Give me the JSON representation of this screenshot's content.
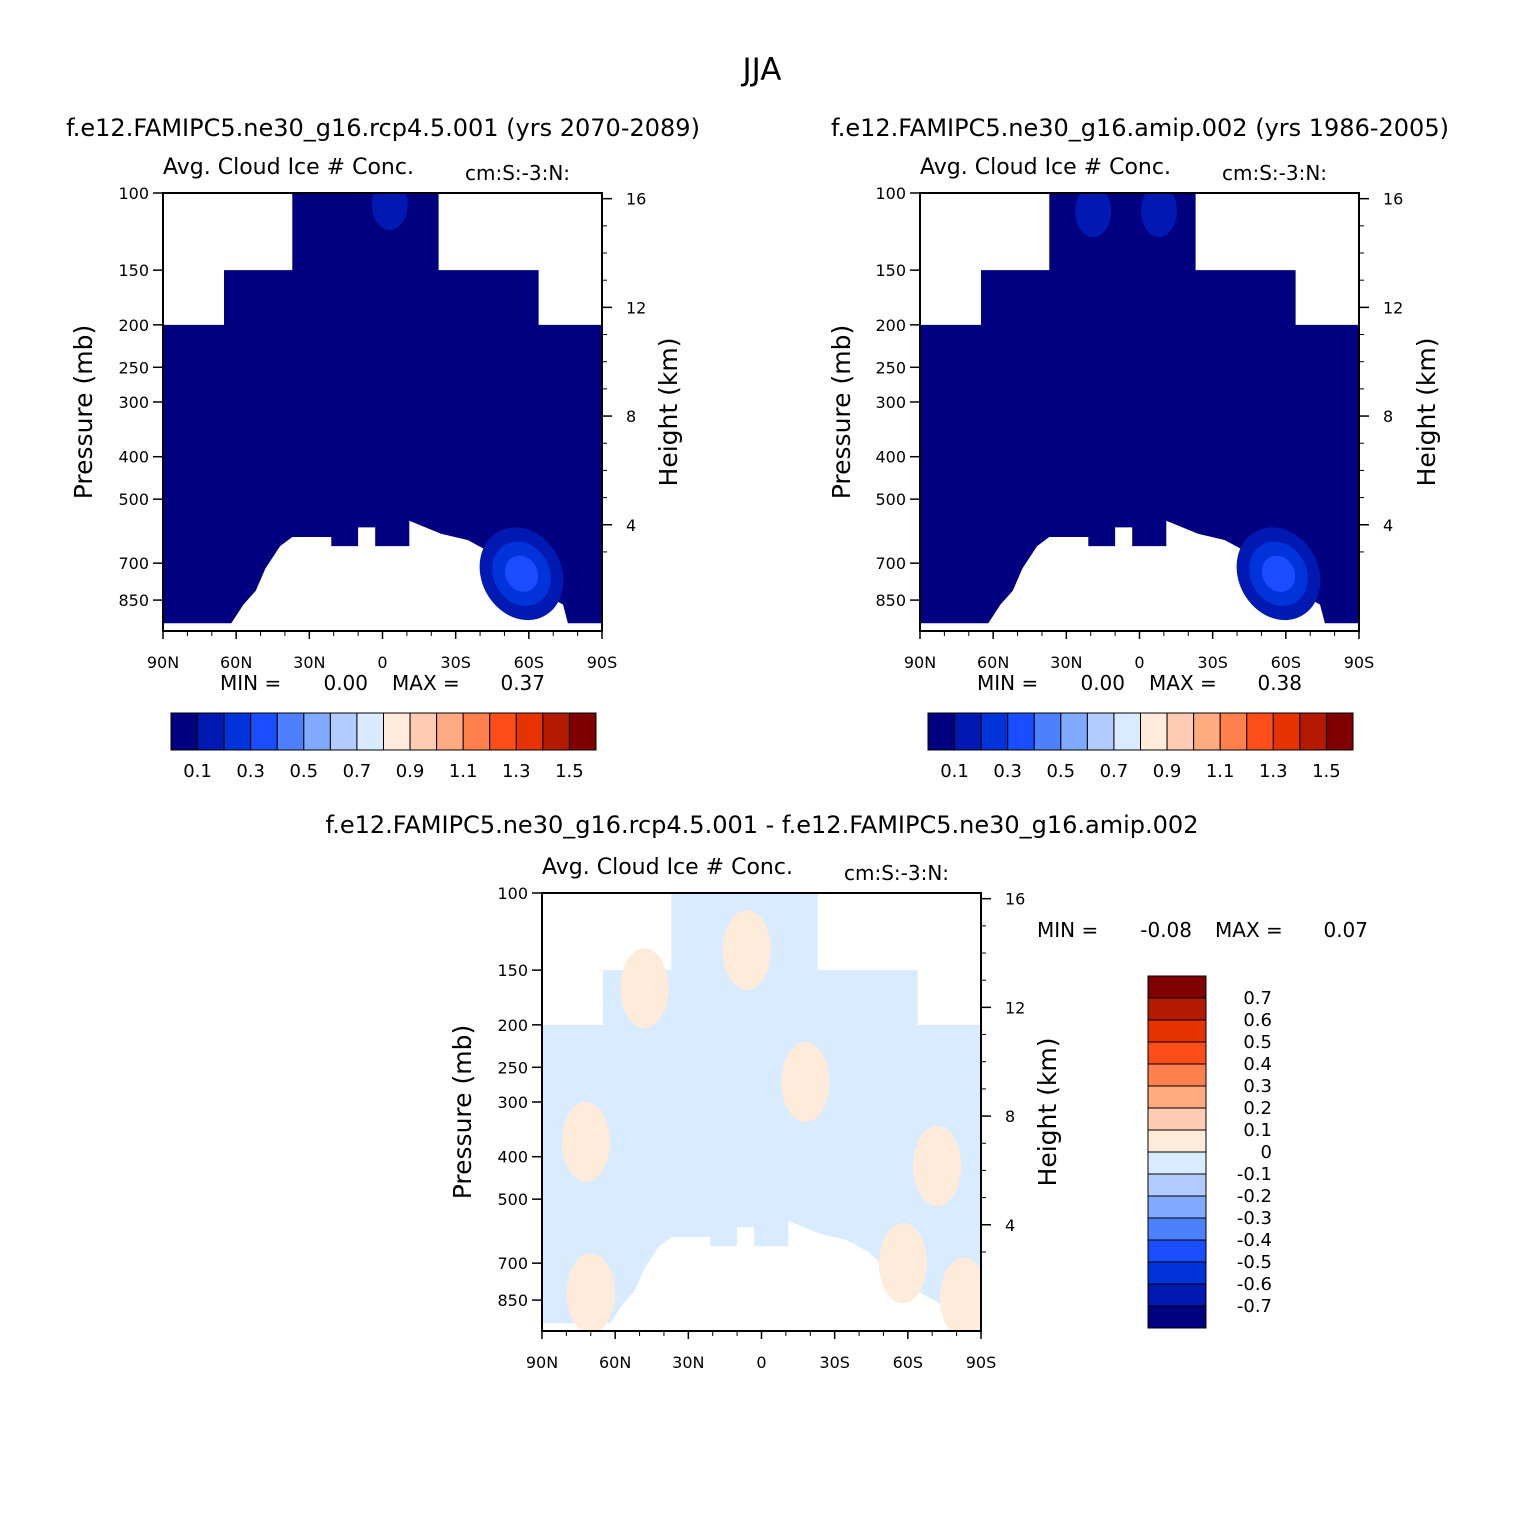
{
  "title": "JJA",
  "chart_data": [
    {
      "type": "heatmap",
      "panel": "top-left",
      "case_title": "f.e12.FAMIPC5.ne30_g16.rcp4.5.001 (yrs 2070-2089)",
      "title": "Avg. Cloud Ice # Conc.",
      "units": "cm:S:-3:N:",
      "ylabel": "Pressure (mb)",
      "y2label": "Height (km)",
      "xticks": [
        "90N",
        "60N",
        "30N",
        "0",
        "30S",
        "60S",
        "90S"
      ],
      "yticks": [
        100,
        150,
        200,
        250,
        300,
        400,
        500,
        700,
        850
      ],
      "y2ticks": [
        16,
        12,
        8,
        4
      ],
      "ylim": [
        100,
        1000
      ],
      "min_label": "MIN =",
      "min_value": "0.00",
      "max_label": "MAX =",
      "max_value": "0.37",
      "colorbar_labels": [
        "0.1",
        "0.3",
        "0.5",
        "0.7",
        "0.9",
        "1.1",
        "1.3",
        "1.5"
      ],
      "colorbar_levels": [
        0,
        0.1,
        0.2,
        0.3,
        0.4,
        0.5,
        0.6,
        0.7,
        0.8,
        0.9,
        1.0,
        1.1,
        1.2,
        1.3,
        1.4,
        1.5
      ],
      "field_base_value": 0.05,
      "maxima": [
        {
          "lat": -57,
          "p": 740,
          "value": 0.37
        },
        {
          "lat": -3,
          "p": 106,
          "value": 0.17
        }
      ]
    },
    {
      "type": "heatmap",
      "panel": "top-right",
      "case_title": "f.e12.FAMIPC5.ne30_g16.amip.002 (yrs 1986-2005)",
      "title": "Avg. Cloud Ice # Conc.",
      "units": "cm:S:-3:N:",
      "ylabel": "Pressure (mb)",
      "y2label": "Height (km)",
      "xticks": [
        "90N",
        "60N",
        "30N",
        "0",
        "30S",
        "60S",
        "90S"
      ],
      "yticks": [
        100,
        150,
        200,
        250,
        300,
        400,
        500,
        700,
        850
      ],
      "y2ticks": [
        16,
        12,
        8,
        4
      ],
      "ylim": [
        100,
        1000
      ],
      "min_label": "MIN =",
      "min_value": "0.00",
      "max_label": "MAX =",
      "max_value": "0.38",
      "colorbar_labels": [
        "0.1",
        "0.3",
        "0.5",
        "0.7",
        "0.9",
        "1.1",
        "1.3",
        "1.5"
      ],
      "colorbar_levels": [
        0,
        0.1,
        0.2,
        0.3,
        0.4,
        0.5,
        0.6,
        0.7,
        0.8,
        0.9,
        1.0,
        1.1,
        1.2,
        1.3,
        1.4,
        1.5
      ],
      "field_base_value": 0.05,
      "maxima": [
        {
          "lat": -57,
          "p": 740,
          "value": 0.38
        },
        {
          "lat": 19,
          "p": 110,
          "value": 0.15
        },
        {
          "lat": -8,
          "p": 110,
          "value": 0.14
        }
      ]
    },
    {
      "type": "heatmap",
      "panel": "bottom-difference",
      "case_title": "f.e12.FAMIPC5.ne30_g16.rcp4.5.001 - f.e12.FAMIPC5.ne30_g16.amip.002",
      "title": "Avg. Cloud Ice # Conc.",
      "units": "cm:S:-3:N:",
      "ylabel": "Pressure (mb)",
      "y2label": "Height (km)",
      "xticks": [
        "90N",
        "60N",
        "30N",
        "0",
        "30S",
        "60S",
        "90S"
      ],
      "yticks": [
        100,
        150,
        200,
        250,
        300,
        400,
        500,
        700,
        850
      ],
      "y2ticks": [
        16,
        12,
        8,
        4
      ],
      "ylim": [
        100,
        1000
      ],
      "min_label": "MIN =",
      "min_value": "-0.08",
      "max_label": "MAX =",
      "max_value": "0.07",
      "colorbar_labels": [
        "0.7",
        "0.6",
        "0.5",
        "0.4",
        "0.3",
        "0.2",
        "0.1",
        "0",
        "-0.1",
        "-0.2",
        "-0.3",
        "-0.4",
        "-0.5",
        "-0.6",
        "-0.7"
      ],
      "field_base_value": -0.03,
      "positive_regions": [
        {
          "lat": 72,
          "p": 370,
          "value": 0.03
        },
        {
          "lat": 70,
          "p": 820,
          "value": 0.03
        },
        {
          "lat": 48,
          "p": 165,
          "value": 0.02
        },
        {
          "lat": 6,
          "p": 135,
          "value": 0.02
        },
        {
          "lat": -18,
          "p": 270,
          "value": 0.02
        },
        {
          "lat": -58,
          "p": 700,
          "value": 0.04
        },
        {
          "lat": -72,
          "p": 420,
          "value": 0.02
        },
        {
          "lat": -83,
          "p": 840,
          "value": 0.02
        }
      ]
    }
  ],
  "colors": {
    "topbar": [
      "#000080",
      "#0019b3",
      "#0033d9",
      "#1a4dff",
      "#4d80ff",
      "#80aaff",
      "#b3ccff",
      "#d9ebff",
      "#ffebd9",
      "#ffccb3",
      "#ffaa80",
      "#ff804d",
      "#ff4d1a",
      "#e63300",
      "#b31a00",
      "#800000"
    ],
    "diffbar": [
      "#800000",
      "#b31a00",
      "#e63300",
      "#ff4d1a",
      "#ff804d",
      "#ffaa80",
      "#ffccb3",
      "#ffebd9",
      "#d9ebff",
      "#b3ccff",
      "#80aaff",
      "#4d80ff",
      "#1a4dff",
      "#0033d9",
      "#0019b3",
      "#000080"
    ]
  }
}
